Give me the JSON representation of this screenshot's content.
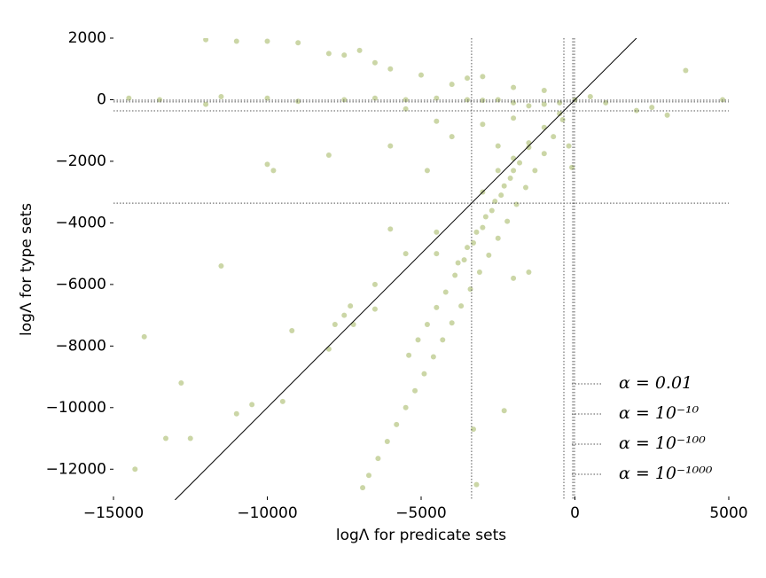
{
  "chart_data": {
    "type": "scatter",
    "xlabel": "logΛ for predicate sets",
    "ylabel": "logΛ for type sets",
    "color": "#6b8a00",
    "xlim": [
      -15000,
      5000
    ],
    "ylim": [
      -13000,
      2000
    ],
    "xticks": [
      {
        "value": -15000,
        "label": "−15000"
      },
      {
        "value": -10000,
        "label": "−10000"
      },
      {
        "value": -5000,
        "label": "−5000"
      },
      0,
      5000
    ],
    "yticks": [
      2000,
      0,
      {
        "value": -2000,
        "label": "−2000"
      },
      {
        "value": -4000,
        "label": "−4000"
      },
      {
        "value": -6000,
        "label": "−6000"
      },
      {
        "value": -8000,
        "label": "−8000"
      },
      {
        "value": -10000,
        "label": "−10000"
      },
      {
        "value": -12000,
        "label": "−12000"
      }
    ],
    "x": [
      -6900,
      -6700,
      -6400,
      -6100,
      -5800,
      -5500,
      -5200,
      -4900,
      -4600,
      -4300,
      -4000,
      -3700,
      -3400,
      -3100,
      -2800,
      -2500,
      -2200,
      -1900,
      -1600,
      -1300,
      -1000,
      -700,
      -400,
      -5400,
      -5100,
      -4800,
      -4500,
      -4200,
      -3900,
      -3600,
      -3300,
      -3000,
      -2700,
      -2400,
      -2100,
      -1800,
      -1500,
      -3800,
      -3500,
      -3200,
      -2900,
      -2600,
      -2300,
      -2000,
      -9500,
      -8000,
      -7200,
      -6500,
      -5500,
      -4500,
      -3000,
      -2500,
      -2000,
      -1500,
      -1000,
      -500,
      -14500,
      -13500,
      -11500,
      -12000,
      -10000,
      -9000,
      -7500,
      -6500,
      -5500,
      -4500,
      -3500,
      -3000,
      -2500,
      -2000,
      -1500,
      -1000,
      -500,
      0,
      500,
      1000,
      2000,
      3000,
      4800,
      2500,
      -12000,
      -11000,
      -10000,
      -9000,
      -8000,
      -7500,
      -7000,
      -6500,
      -6000,
      -5000,
      -4000,
      -3500,
      -3000,
      -2000,
      -1000,
      3600,
      -5500,
      -4500,
      -4000,
      -3000,
      -2500,
      -2000,
      -4800,
      -6000,
      -8000,
      -10000,
      -9800,
      -11500,
      -7500,
      -7800,
      -7300,
      -6000,
      -6500,
      -9200,
      -10500,
      -12800,
      -14000,
      -11000,
      -12500,
      -13300,
      -14300,
      -3300,
      -2300,
      -3200,
      -2000,
      -1500,
      -4500,
      -200,
      -100
    ],
    "y": [
      -12600,
      -12200,
      -11650,
      -11100,
      -10550,
      -10000,
      -9450,
      -8900,
      -8350,
      -7800,
      -7250,
      -6700,
      -6150,
      -5600,
      -5050,
      -4500,
      -3950,
      -3400,
      -2850,
      -2300,
      -1750,
      -1200,
      -650,
      -8300,
      -7800,
      -7300,
      -6750,
      -6250,
      -5700,
      -5200,
      -4650,
      -4150,
      -3600,
      -3100,
      -2550,
      -2050,
      -1550,
      -5300,
      -4800,
      -4300,
      -3800,
      -3300,
      -2800,
      -2300,
      -9800,
      -8100,
      -7300,
      -6800,
      -5000,
      -4300,
      -3000,
      -2300,
      -1900,
      -1400,
      -900,
      -450,
      50,
      0,
      100,
      -150,
      50,
      -50,
      0,
      50,
      0,
      50,
      0,
      -20,
      0,
      -100,
      -200,
      -150,
      -100,
      0,
      100,
      -100,
      -350,
      -500,
      0,
      -250,
      1950,
      1900,
      1900,
      1850,
      1500,
      1450,
      1600,
      1200,
      1000,
      800,
      500,
      700,
      750,
      400,
      300,
      950,
      -300,
      -700,
      -1200,
      -800,
      -1500,
      -600,
      -2300,
      -1500,
      -1800,
      -2100,
      -2300,
      -5400,
      -7000,
      -7300,
      -6700,
      -4200,
      -6000,
      -7500,
      -9900,
      -9200,
      -7700,
      -10200,
      -11000,
      -11000,
      -12000,
      -10700,
      -10100,
      -12500,
      -5800,
      -5600,
      -5000,
      -1500,
      -2200
    ],
    "thresholds": [
      {
        "name": "α = 0.01",
        "color": "#555555",
        "value": -15
      },
      {
        "name": "α = 10⁻¹⁰",
        "color": "#555555",
        "value": -70
      },
      {
        "name": "α = 10⁻¹⁰⁰",
        "color": "#555555",
        "value": -360
      },
      {
        "name": "α = 10⁻¹⁰⁰⁰",
        "color": "#555555",
        "value": -3360
      }
    ],
    "diagonal": true
  }
}
